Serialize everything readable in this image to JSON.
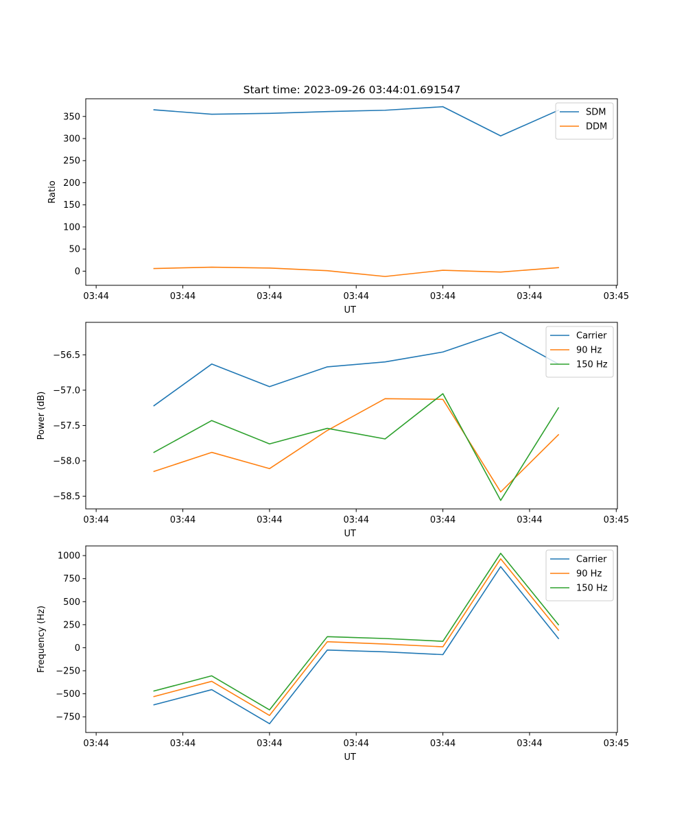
{
  "title": "Start time: 2023-09-26 03:44:01.691547",
  "chart_data": [
    {
      "type": "line",
      "title": "Start time: 2023-09-26 03:44:01.691547",
      "xlabel": "UT",
      "ylabel": "Ratio",
      "x": [
        1,
        2,
        3,
        4,
        5,
        6,
        7,
        8
      ],
      "x_ticks": [
        0,
        1.5,
        3,
        4.5,
        6,
        7.5,
        9
      ],
      "x_tick_labels": [
        "03:44",
        "03:44",
        "03:44",
        "03:44",
        "03:44",
        "03:44",
        "03:45"
      ],
      "xlim": [
        -0.18,
        9.02
      ],
      "ylim": [
        -32,
        390
      ],
      "y_ticks": [
        0,
        50,
        100,
        150,
        200,
        250,
        300,
        350
      ],
      "y_tick_labels": [
        "0",
        "50",
        "100",
        "150",
        "200",
        "250",
        "300",
        "350"
      ],
      "legend_position": "top-right",
      "series": [
        {
          "name": "SDM",
          "color": "#1f77b4",
          "values": [
            365,
            355,
            357,
            361,
            364,
            372,
            306,
            364
          ]
        },
        {
          "name": "DDM",
          "color": "#ff7f0e",
          "values": [
            6,
            9,
            7,
            1,
            -12,
            2,
            -2,
            8
          ]
        }
      ]
    },
    {
      "type": "line",
      "title": "",
      "xlabel": "UT",
      "ylabel": "Power (dB)",
      "x": [
        1,
        2,
        3,
        4,
        5,
        6,
        7,
        8
      ],
      "x_ticks": [
        0,
        1.5,
        3,
        4.5,
        6,
        7.5,
        9
      ],
      "x_tick_labels": [
        "03:44",
        "03:44",
        "03:44",
        "03:44",
        "03:44",
        "03:44",
        "03:45"
      ],
      "xlim": [
        -0.18,
        9.02
      ],
      "ylim": [
        -58.68,
        -56.04
      ],
      "y_ticks": [
        -58.5,
        -58.0,
        -57.5,
        -57.0,
        -56.5
      ],
      "y_tick_labels": [
        "−58.5",
        "−58.0",
        "−57.5",
        "−57.0",
        "−56.5"
      ],
      "legend_position": "top-right",
      "series": [
        {
          "name": "Carrier",
          "color": "#1f77b4",
          "values": [
            -57.22,
            -56.63,
            -56.95,
            -56.67,
            -56.6,
            -56.46,
            -56.18,
            -56.63
          ]
        },
        {
          "name": "90 Hz",
          "color": "#ff7f0e",
          "values": [
            -58.15,
            -57.88,
            -58.11,
            -57.57,
            -57.12,
            -57.13,
            -58.44,
            -57.63
          ]
        },
        {
          "name": "150 Hz",
          "color": "#2ca02c",
          "values": [
            -57.88,
            -57.43,
            -57.76,
            -57.54,
            -57.69,
            -57.05,
            -58.56,
            -57.25
          ]
        }
      ]
    },
    {
      "type": "line",
      "title": "",
      "xlabel": "UT",
      "ylabel": "Frequency (Hz)",
      "x": [
        1,
        2,
        3,
        4,
        5,
        6,
        7,
        8
      ],
      "x_ticks": [
        0,
        1.5,
        3,
        4.5,
        6,
        7.5,
        9
      ],
      "x_tick_labels": [
        "03:44",
        "03:44",
        "03:44",
        "03:44",
        "03:44",
        "03:44",
        "03:45"
      ],
      "xlim": [
        -0.18,
        9.02
      ],
      "ylim": [
        -920,
        1105
      ],
      "y_ticks": [
        -750,
        -500,
        -250,
        0,
        250,
        500,
        750,
        1000
      ],
      "y_tick_labels": [
        "−750",
        "−500",
        "−250",
        "0",
        "250",
        "500",
        "750",
        "1000"
      ],
      "legend_position": "top-right",
      "series": [
        {
          "name": "Carrier",
          "color": "#1f77b4",
          "values": [
            -620,
            -455,
            -825,
            -25,
            -45,
            -75,
            880,
            100
          ]
        },
        {
          "name": "90 Hz",
          "color": "#ff7f0e",
          "values": [
            -530,
            -365,
            -735,
            65,
            40,
            10,
            965,
            190
          ]
        },
        {
          "name": "150 Hz",
          "color": "#2ca02c",
          "values": [
            -470,
            -305,
            -675,
            120,
            100,
            70,
            1025,
            250
          ]
        }
      ]
    }
  ]
}
